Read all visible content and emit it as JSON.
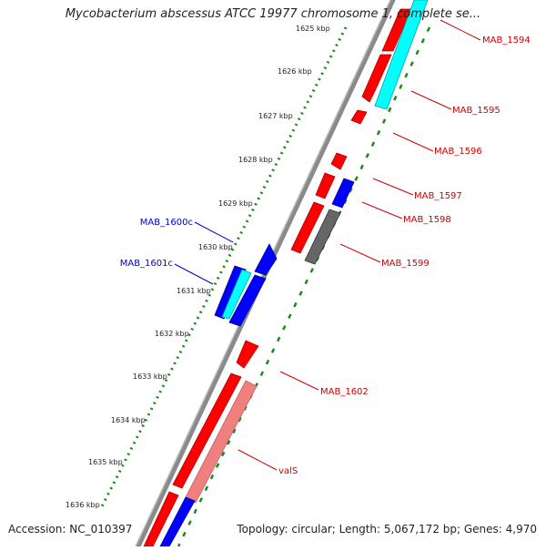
{
  "title": "Mycobacterium abscessus ATCC 19977 chromosome 1, complete se...",
  "footer": {
    "accession": "Accession: NC_010397",
    "summary": "Topology: circular; Length: 5,067,172 bp; Genes: 4,970"
  },
  "ticks": [
    "1625 kbp",
    "1626 kbp",
    "1627 kbp",
    "1628 kbp",
    "1629 kbp",
    "1630 kbp",
    "1631 kbp",
    "1632 kbp",
    "1633 kbp",
    "1634 kbp",
    "1635 kbp",
    "1636 kbp"
  ],
  "gene_labels": {
    "mab_1594": "MAB_1594",
    "mab_1595": "MAB_1595",
    "mab_1596": "MAB_1596",
    "mab_1597": "MAB_1597",
    "mab_1598": "MAB_1598",
    "mab_1599": "MAB_1599",
    "mab_1600c": "MAB_1600c",
    "mab_1601c": "MAB_1601c",
    "mab_1602": "MAB_1602",
    "vals": "valS"
  },
  "colors": {
    "forward_gene": "#ff0000",
    "reverse_gene": "#0000ff",
    "rna": "#00ffff",
    "pseudo": "#666666",
    "highlight": "#f08080",
    "backbone": "#888888",
    "tick_dots": "#1a8a1a",
    "label_forward": "#d00000",
    "label_reverse": "#0000cc"
  }
}
